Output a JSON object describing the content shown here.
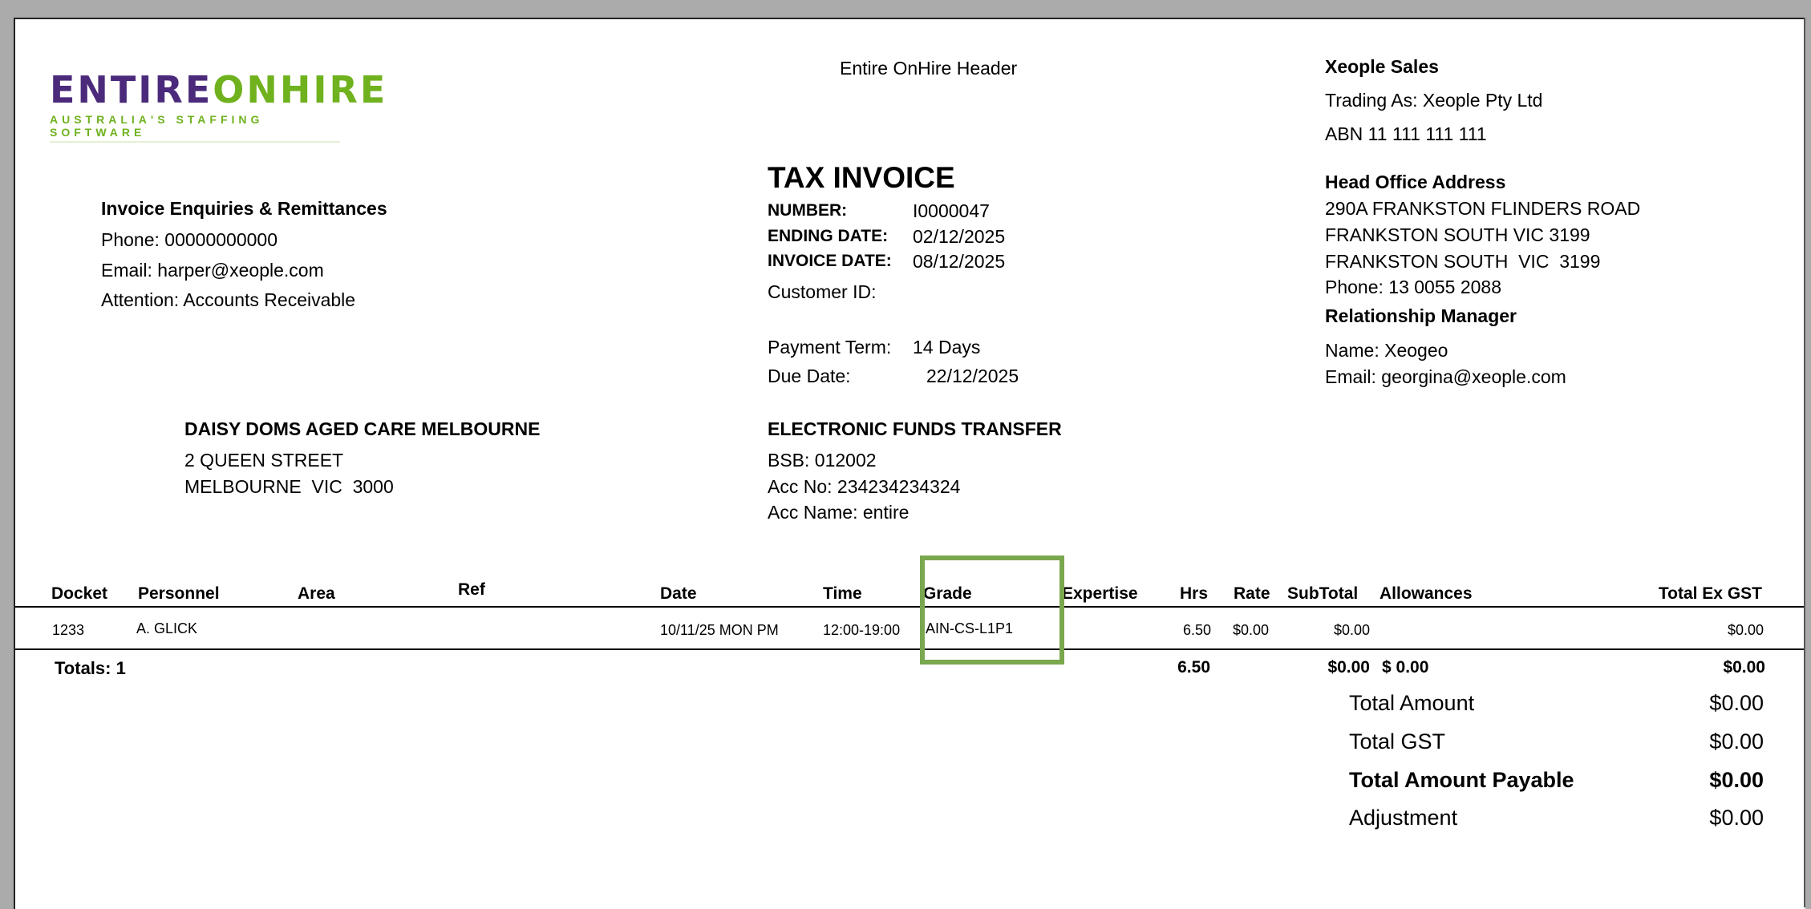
{
  "logo": {
    "part1": "ENTIRE",
    "part2": "ONHIRE",
    "tagline": "AUSTRALIA'S STAFFING SOFTWARE",
    "color_primary": "#4b2a7b",
    "color_secondary": "#6fb21e"
  },
  "header": {
    "title": "Entire OnHire Header"
  },
  "company": {
    "name": "Xeople Sales",
    "trading_as": "Trading As: Xeople Pty Ltd",
    "abn": "ABN 11 111 111 111",
    "head_office_label": "Head Office Address",
    "address": [
      "290A FRANKSTON FLINDERS ROAD",
      "FRANKSTON SOUTH VIC 3199",
      "FRANKSTON SOUTH  VIC  3199",
      "Phone: 13 0055 2088"
    ],
    "rm_label": "Relationship Manager",
    "rm_name": "Name: Xeogeo",
    "rm_email": "Email: georgina@xeople.com"
  },
  "enquiries": {
    "title": "Invoice Enquiries & Remittances",
    "phone": "Phone: 00000000000",
    "email": "Email: harper@xeople.com",
    "attention": "Attention: Accounts Receivable"
  },
  "invoice": {
    "title": "TAX INVOICE",
    "number_label": "NUMBER:",
    "number": "I0000047",
    "ending_label": "ENDING DATE:",
    "ending": "02/12/2025",
    "date_label": "INVOICE DATE:",
    "date": "08/12/2025",
    "customer_id_label": "Customer ID:",
    "payment_term_label": "Payment Term:",
    "payment_term": "14 Days",
    "due_label": "Due Date:",
    "due": "22/12/2025"
  },
  "customer": {
    "name": "DAISY DOMS AGED CARE MELBOURNE",
    "line1": "2 QUEEN STREET",
    "line2": "MELBOURNE  VIC  3000"
  },
  "eft": {
    "title": "ELECTRONIC FUNDS TRANSFER",
    "bsb": "BSB: 012002",
    "acc_no": "Acc No: 234234234324",
    "acc_name": "Acc Name: entire"
  },
  "table": {
    "headers": {
      "docket": "Docket",
      "personnel": "Personnel",
      "area": "Area",
      "ref": "Ref",
      "date": "Date",
      "time": "Time",
      "grade": "Grade",
      "expertise": "Expertise",
      "hrs": "Hrs",
      "rate": "Rate",
      "subtotal": "SubTotal",
      "allowances": "Allowances",
      "total": "Total Ex GST"
    },
    "rows": [
      {
        "docket": "1233",
        "personnel": "A. GLICK",
        "area": "",
        "ref": "",
        "date": "10/11/25 MON PM",
        "time": "12:00-19:00",
        "grade": "AIN-CS-L1P1",
        "expertise": "",
        "hrs": "6.50",
        "rate": "$0.00",
        "subtotal": "$0.00",
        "allowances": "",
        "total": "$0.00"
      }
    ],
    "totals": {
      "label": "Totals:",
      "count": "1",
      "hrs": "6.50",
      "subtotal": "$0.00",
      "allowances": "$ 0.00",
      "total": "$0.00"
    }
  },
  "summary": {
    "total_amount_label": "Total Amount",
    "total_amount": "$0.00",
    "total_gst_label": "Total GST",
    "total_gst": "$0.00",
    "payable_label": "Total Amount Payable",
    "payable": "$0.00",
    "adjustment_label": "Adjustment",
    "adjustment": "$0.00"
  },
  "highlight_color": "#7aa84e"
}
